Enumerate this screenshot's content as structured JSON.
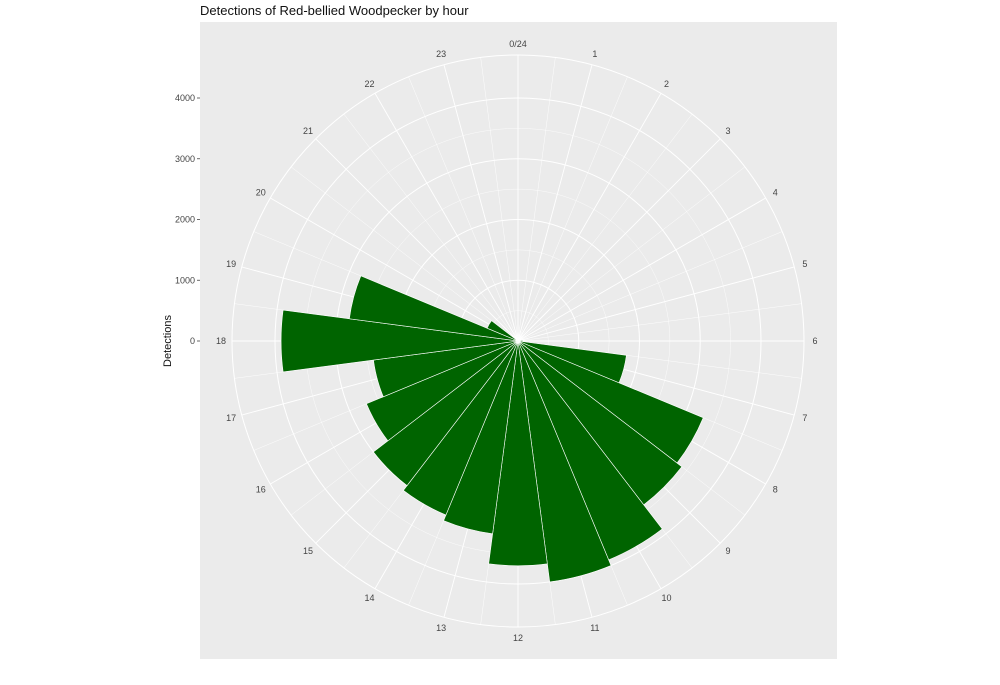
{
  "chart_data": {
    "type": "bar",
    "coord": "polar",
    "title": "Detections of Red-bellied Woodpecker by hour",
    "xlabel": "",
    "ylabel": "Detections",
    "categories": [
      0,
      1,
      2,
      3,
      4,
      5,
      6,
      7,
      8,
      9,
      10,
      11,
      12,
      13,
      14,
      15,
      16,
      17,
      18,
      19,
      20,
      21,
      22,
      23
    ],
    "angle_tick_labels": [
      "0/24",
      "1",
      "2",
      "3",
      "4",
      "5",
      "6",
      "7",
      "8",
      "9",
      "10",
      "11",
      "12",
      "13",
      "14",
      "15",
      "16",
      "17",
      "18",
      "19",
      "20",
      "21",
      "22",
      "23"
    ],
    "values": [
      0,
      0,
      0,
      0,
      0,
      0,
      80,
      1800,
      3300,
      3400,
      3900,
      4000,
      3700,
      3200,
      3100,
      3000,
      2700,
      2400,
      3900,
      2800,
      550,
      0,
      0,
      0
    ],
    "ylim": [
      0,
      4000
    ],
    "yticks": [
      0,
      1000,
      2000,
      3000,
      4000
    ],
    "ytick_labels": [
      "0",
      "1000",
      "2000",
      "3000",
      "4000"
    ],
    "bar_color": "#006400",
    "panel_color": "#EBEBEB",
    "grid_color": "#FFFFFF",
    "grid": true,
    "legend": "none"
  }
}
